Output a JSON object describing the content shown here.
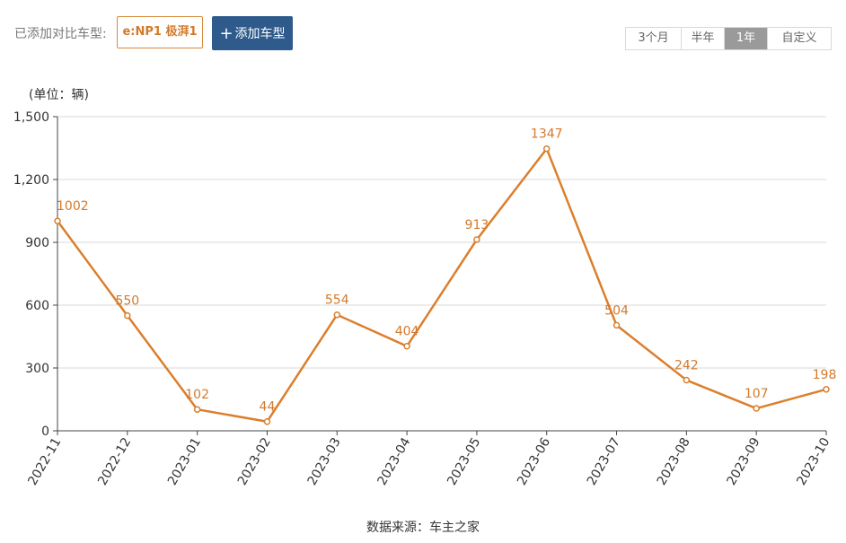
{
  "toolbar": {
    "compare_label": "已添加对比车型:",
    "model_chip": "e:NP1 极湃1",
    "add_button_label": "添加车型",
    "range_options": [
      "3个月",
      "半年",
      "1年",
      "自定义"
    ],
    "active_range": "1年"
  },
  "unit_label": "(单位：辆)",
  "source": "数据来源：车主之家",
  "colors": {
    "line": "#db7f2d",
    "label": "#d47a2c",
    "grid": "#d9d9d9",
    "axis": "#444444",
    "button": "#2e5b8b"
  },
  "chart_data": {
    "type": "line",
    "x": [
      "2022-11",
      "2022-12",
      "2023-01",
      "2023-02",
      "2023-03",
      "2023-04",
      "2023-05",
      "2023-06",
      "2023-07",
      "2023-08",
      "2023-09",
      "2023-10"
    ],
    "series": [
      {
        "values": [
          1002,
          550,
          102,
          44,
          554,
          404,
          913,
          1347,
          504,
          242,
          107,
          198
        ]
      }
    ],
    "y_ticks": [
      "1,500",
      "1,200",
      "900",
      "600",
      "300",
      "0"
    ],
    "ylim": [
      0,
      1500
    ],
    "grid": true
  }
}
